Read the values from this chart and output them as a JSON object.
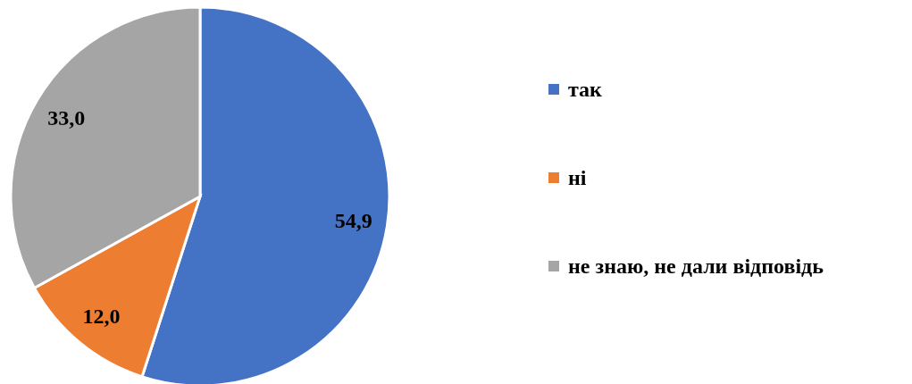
{
  "chart_data": {
    "type": "pie",
    "categories": [
      "так",
      "ні",
      "не знаю, не дали відповідь"
    ],
    "values": [
      54.9,
      12.0,
      33.0
    ],
    "colors": [
      "#4472c4",
      "#ed7d31",
      "#a5a5a5"
    ],
    "value_labels": [
      "54,9",
      "12,0",
      "33,0"
    ],
    "legend": "right"
  }
}
